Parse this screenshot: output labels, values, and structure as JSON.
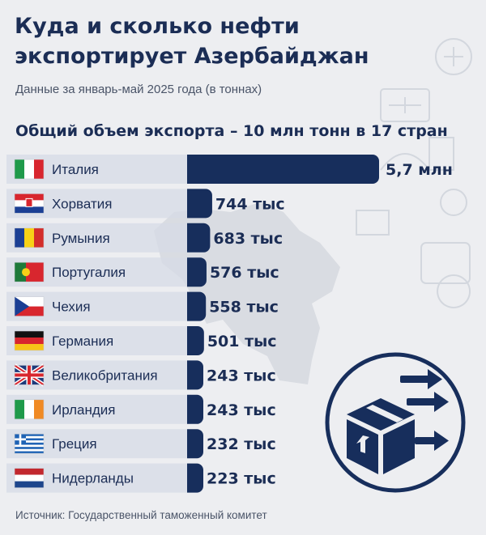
{
  "title_line1": "Куда и сколько нефти",
  "title_line2": "экспортирует Азербайджан",
  "subtitle": "Данные за январь-май 2025 года (в тоннах)",
  "headline": "Общий объем экспорта – 10 млн тонн в 17 стран",
  "source": "Источник: Государственный таможенный комитет",
  "colors": {
    "bar": "#172e5c",
    "text": "#1b2d55",
    "row_bg": "#d6dbe5",
    "background": "#edeef1"
  },
  "icons": [
    "map-of-azerbaijan-background",
    "shipping-box-with-arrows-icon"
  ],
  "chart_data": {
    "type": "bar",
    "orientation": "horizontal",
    "categories": [
      "Италия",
      "Хорватия",
      "Румыния",
      "Португалия",
      "Чехия",
      "Германия",
      "Великобритания",
      "Ирландия",
      "Греция",
      "Нидерланды"
    ],
    "values": [
      5700000,
      744000,
      683000,
      576000,
      558000,
      501000,
      243000,
      243000,
      232000,
      223000
    ],
    "value_labels": [
      "5,7 млн",
      "744 тыс",
      "683 тыс",
      "576 тыс",
      "558 тыс",
      "501 тыс",
      "243 тыс",
      "243 тыс",
      "232 тыс",
      "223 тыс"
    ],
    "flags": [
      "italy-flag",
      "croatia-flag",
      "romania-flag",
      "portugal-flag",
      "czechia-flag",
      "germany-flag",
      "uk-flag",
      "ireland-flag",
      "greece-flag",
      "netherlands-flag"
    ],
    "unit": "тонн"
  }
}
